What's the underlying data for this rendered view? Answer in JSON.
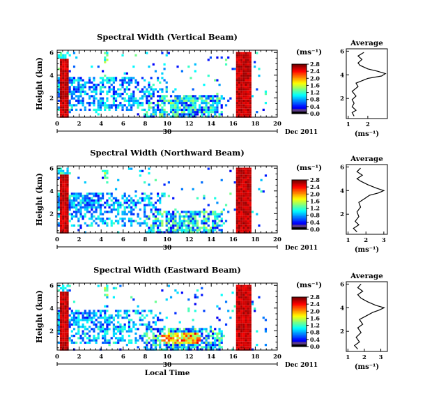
{
  "chart_data": [
    {
      "type": "heatmap",
      "title": "Spectral Width (Vertical Beam)",
      "ylabel": "Height (km)",
      "xlabel": "",
      "xticks": [
        "0",
        "2",
        "4",
        "6",
        "8",
        "10",
        "12",
        "14",
        "16",
        "18",
        "20"
      ],
      "yticks": [
        "2",
        "4",
        "6"
      ],
      "xlim": [
        0,
        20
      ],
      "ylim": [
        0.3,
        6.2
      ],
      "date_label": "30",
      "month_label": "Dec 2011",
      "colorbar": {
        "unit": "(ms⁻¹)",
        "ticks": [
          "0.0",
          "0.4",
          "0.8",
          "1.2",
          "1.6",
          "2.0",
          "2.4",
          "2.8"
        ]
      },
      "average": {
        "title": "Average",
        "xlabel": "(ms⁻¹)",
        "xticks": [
          "1",
          "2"
        ],
        "yticks": [
          "2",
          "4",
          "6"
        ],
        "xlim": [
          0.9,
          3.0
        ],
        "ylim": [
          0.3,
          6.2
        ],
        "profile": [
          [
            1.3,
            0.5
          ],
          [
            1.2,
            0.8
          ],
          [
            1.4,
            1.0
          ],
          [
            1.2,
            1.3
          ],
          [
            1.3,
            1.6
          ],
          [
            1.2,
            1.9
          ],
          [
            1.4,
            2.2
          ],
          [
            1.2,
            2.6
          ],
          [
            1.5,
            3.0
          ],
          [
            1.4,
            3.3
          ],
          [
            1.7,
            3.5
          ],
          [
            2.0,
            3.7
          ],
          [
            2.7,
            3.9
          ],
          [
            2.9,
            4.1
          ],
          [
            2.5,
            4.3
          ],
          [
            2.0,
            4.5
          ],
          [
            1.6,
            4.8
          ],
          [
            1.5,
            5.0
          ],
          [
            1.7,
            5.3
          ],
          [
            1.5,
            5.6
          ],
          [
            1.8,
            5.9
          ]
        ]
      }
    },
    {
      "type": "heatmap",
      "title": "Spectral Width (Northward Beam)",
      "ylabel": "Height (km)",
      "xlabel": "",
      "xticks": [
        "0",
        "2",
        "4",
        "6",
        "8",
        "10",
        "12",
        "14",
        "16",
        "18",
        "20"
      ],
      "yticks": [
        "2",
        "4",
        "6"
      ],
      "xlim": [
        0,
        20
      ],
      "ylim": [
        0.3,
        6.2
      ],
      "date_label": "30",
      "month_label": "Dec 2011",
      "colorbar": {
        "unit": "(ms⁻¹)",
        "ticks": [
          "0.0",
          "0.4",
          "0.8",
          "1.2",
          "1.6",
          "2.0",
          "2.4",
          "2.8"
        ]
      },
      "average": {
        "title": "Average",
        "xlabel": "(ms⁻¹)",
        "xticks": [
          "1",
          "2",
          "3"
        ],
        "yticks": [
          "2",
          "4",
          "6"
        ],
        "xlim": [
          0.9,
          3.2
        ],
        "ylim": [
          0.3,
          6.2
        ],
        "profile": [
          [
            1.5,
            0.5
          ],
          [
            1.3,
            0.8
          ],
          [
            1.6,
            1.1
          ],
          [
            1.4,
            1.4
          ],
          [
            1.6,
            1.8
          ],
          [
            1.5,
            2.2
          ],
          [
            1.7,
            2.6
          ],
          [
            1.6,
            3.0
          ],
          [
            1.9,
            3.3
          ],
          [
            2.2,
            3.6
          ],
          [
            2.7,
            3.8
          ],
          [
            3.0,
            4.0
          ],
          [
            2.6,
            4.2
          ],
          [
            2.1,
            4.5
          ],
          [
            1.7,
            4.8
          ],
          [
            1.5,
            5.0
          ],
          [
            1.8,
            5.3
          ],
          [
            1.5,
            5.6
          ],
          [
            1.7,
            5.9
          ]
        ]
      }
    },
    {
      "type": "heatmap",
      "title": "Spectral Width (Eastward Beam)",
      "ylabel": "Height (km)",
      "xlabel": "Local Time",
      "xticks": [
        "0",
        "2",
        "4",
        "6",
        "8",
        "10",
        "12",
        "14",
        "16",
        "18",
        "20"
      ],
      "yticks": [
        "2",
        "4",
        "6"
      ],
      "xlim": [
        0,
        20
      ],
      "ylim": [
        0.3,
        6.2
      ],
      "date_label": "30",
      "month_label": "Dec 2011",
      "colorbar": {
        "unit": "(ms⁻¹)",
        "ticks": [
          "0.0",
          "0.4",
          "0.8",
          "1.2",
          "1.6",
          "2.0",
          "2.4",
          "2.8"
        ]
      },
      "average": {
        "title": "Average",
        "xlabel": "(ms⁻¹)",
        "xticks": [
          "1",
          "2",
          "3"
        ],
        "yticks": [
          "2",
          "4",
          "6"
        ],
        "xlim": [
          0.9,
          3.4
        ],
        "ylim": [
          0.3,
          6.2
        ],
        "profile": [
          [
            1.6,
            0.5
          ],
          [
            1.4,
            0.8
          ],
          [
            1.7,
            1.1
          ],
          [
            1.5,
            1.5
          ],
          [
            1.8,
            1.9
          ],
          [
            1.6,
            2.3
          ],
          [
            1.9,
            2.6
          ],
          [
            1.7,
            3.0
          ],
          [
            2.1,
            3.3
          ],
          [
            2.5,
            3.6
          ],
          [
            2.9,
            3.8
          ],
          [
            3.2,
            4.0
          ],
          [
            2.7,
            4.2
          ],
          [
            2.2,
            4.5
          ],
          [
            1.8,
            4.8
          ],
          [
            1.6,
            5.1
          ],
          [
            1.9,
            5.4
          ],
          [
            1.6,
            5.7
          ],
          [
            1.8,
            6.0
          ]
        ]
      }
    }
  ]
}
